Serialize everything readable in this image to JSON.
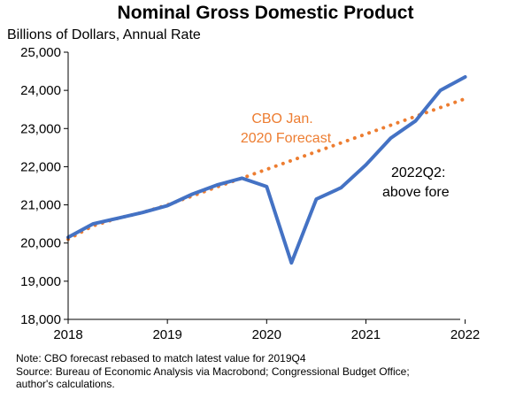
{
  "chart_data": {
    "type": "line",
    "title": "Nominal Gross Domestic Product",
    "ylabel": "Billions of Dollars, Annual Rate",
    "ylim": [
      18000,
      25000
    ],
    "xlim": [
      2018,
      2021.95
    ],
    "x_ticks": [
      "2018",
      "2019",
      "2020",
      "2021",
      "2022"
    ],
    "y_ticks": [
      "18,000",
      "19,000",
      "20,000",
      "21,000",
      "22,000",
      "23,000",
      "24,000",
      "25,000"
    ],
    "series": [
      {
        "color": "#4472C4",
        "style": "solid",
        "points": [
          {
            "x": 2018.0,
            "y": 20150
          },
          {
            "x": 2018.25,
            "y": 20500
          },
          {
            "x": 2018.5,
            "y": 20650
          },
          {
            "x": 2018.75,
            "y": 20800
          },
          {
            "x": 2019.0,
            "y": 20980
          },
          {
            "x": 2019.25,
            "y": 21280
          },
          {
            "x": 2019.5,
            "y": 21520
          },
          {
            "x": 2019.75,
            "y": 21700
          },
          {
            "x": 2020.0,
            "y": 21480
          },
          {
            "x": 2020.25,
            "y": 19480
          },
          {
            "x": 2020.5,
            "y": 21150
          },
          {
            "x": 2020.75,
            "y": 21450
          },
          {
            "x": 2021.0,
            "y": 22050
          },
          {
            "x": 2021.25,
            "y": 22750
          },
          {
            "x": 2021.5,
            "y": 23200
          },
          {
            "x": 2021.75,
            "y": 24000
          },
          {
            "x": 2022.0,
            "y": 24350
          }
        ]
      },
      {
        "color": "#ED7D31",
        "style": "dotted",
        "points": [
          {
            "x": 2018.0,
            "y": 20100
          },
          {
            "x": 2018.25,
            "y": 20450
          },
          {
            "x": 2018.5,
            "y": 20650
          },
          {
            "x": 2018.75,
            "y": 20800
          },
          {
            "x": 2019.0,
            "y": 21000
          },
          {
            "x": 2019.25,
            "y": 21230
          },
          {
            "x": 2019.5,
            "y": 21470
          },
          {
            "x": 2019.75,
            "y": 21700
          },
          {
            "x": 2022.0,
            "y": 23780
          }
        ]
      }
    ],
    "annotations": [
      {
        "text": "CBO Jan.",
        "color": "#ED7D31"
      },
      {
        "text": "2020 Forecast",
        "color": "#ED7D31"
      },
      {
        "text": "2022Q2:",
        "color": "#000000"
      },
      {
        "text": "above fore",
        "color": "#000000"
      }
    ]
  },
  "note_lines": [
    "Note: CBO forecast rebased to match latest value for 2019Q4",
    "Source: Bureau of Economic Analysis via Macrobond; Congressional Budget Office;",
    "author's calculations."
  ]
}
